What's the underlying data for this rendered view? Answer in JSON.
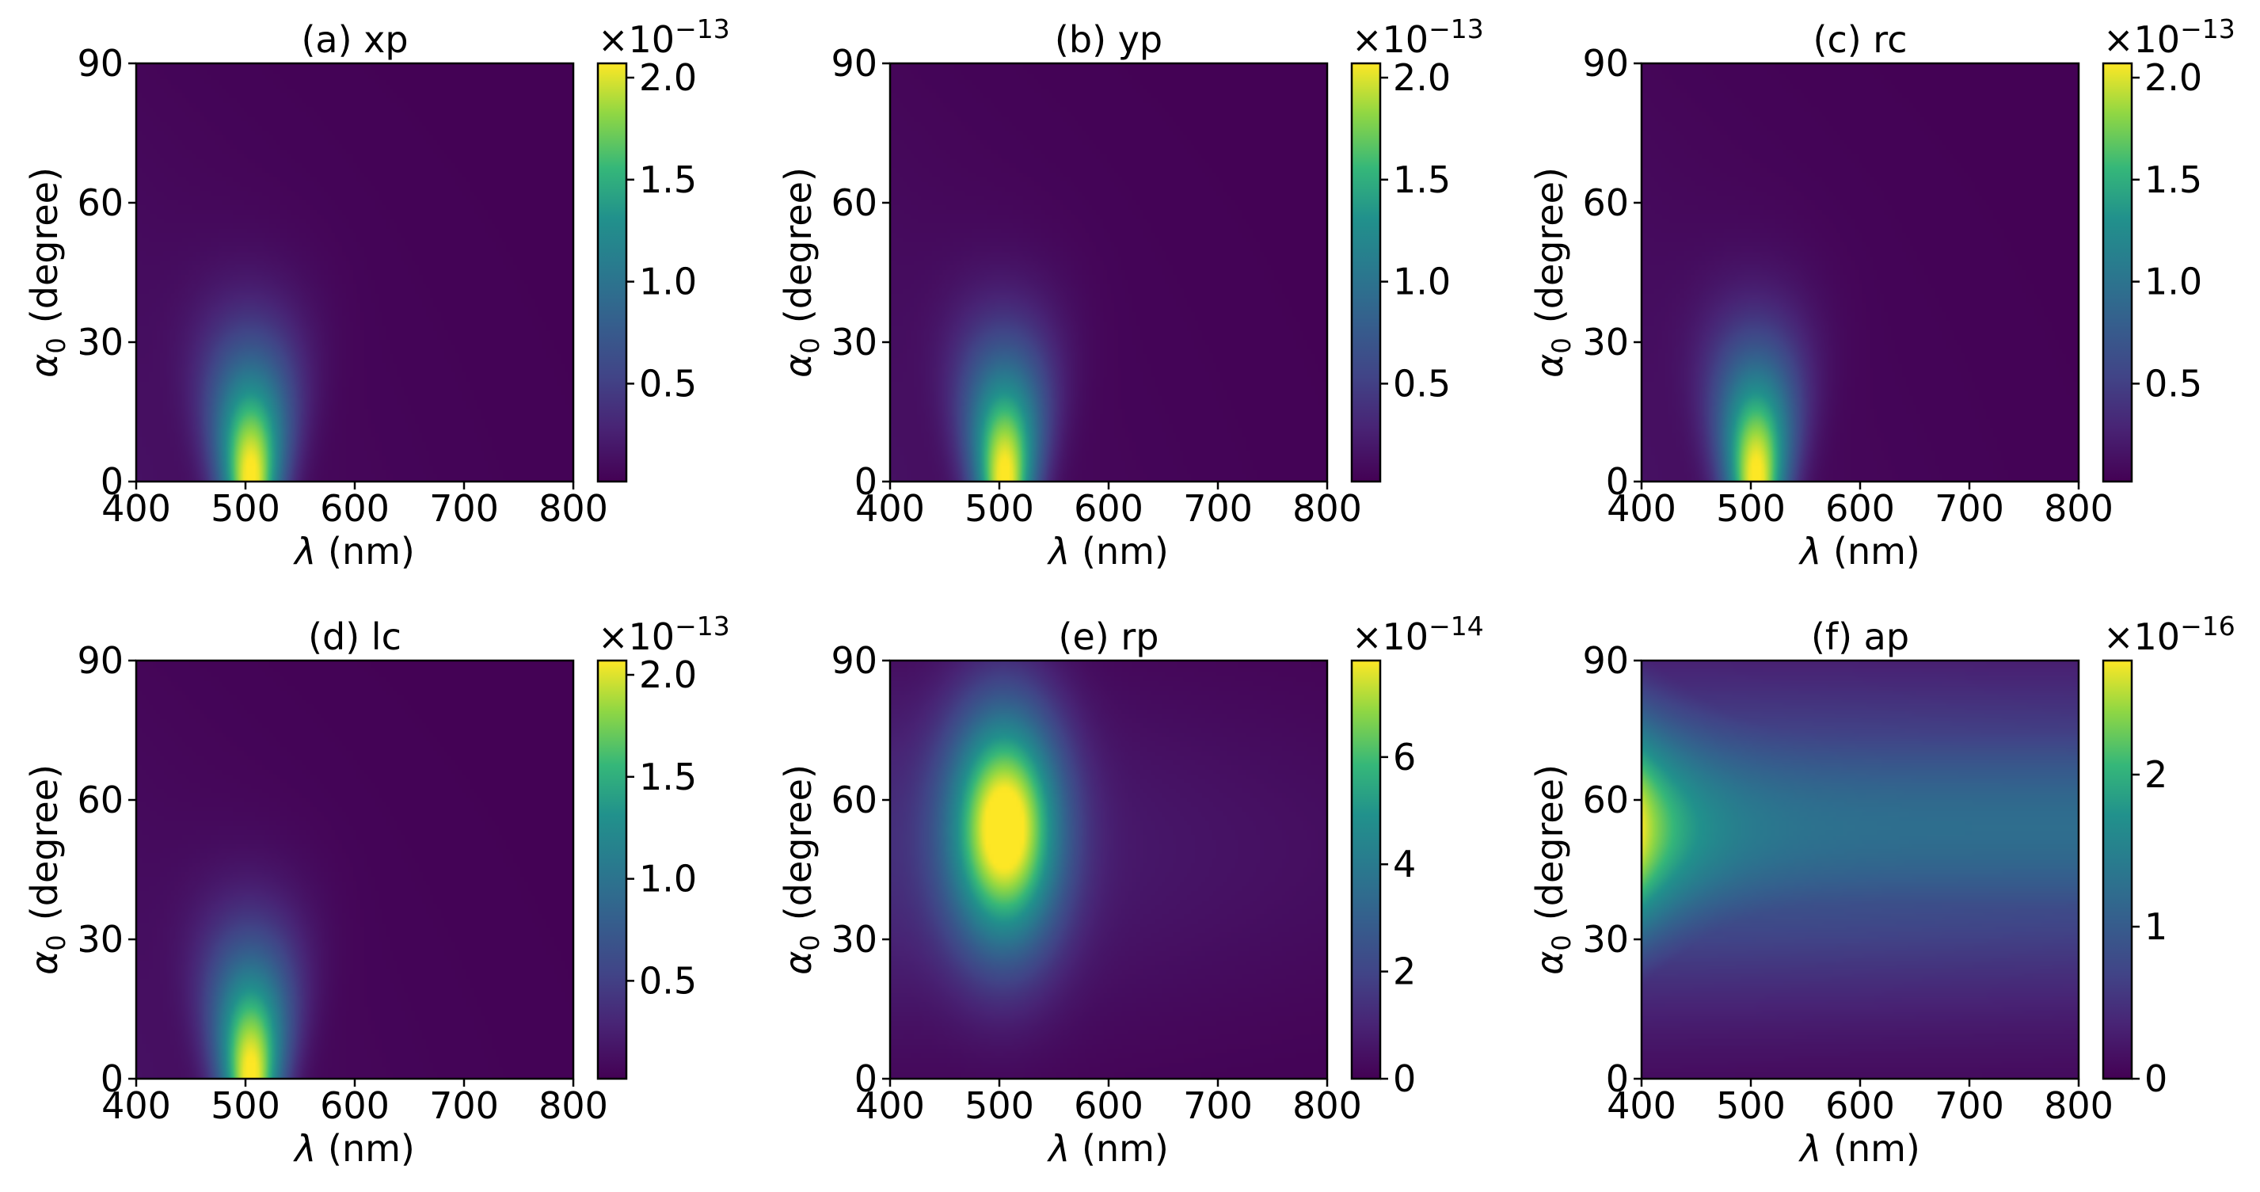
{
  "figure": {
    "description_free": true
  },
  "chart_data": [
    {
      "type": "heatmap",
      "title": "(a) xp",
      "xlabel": "λ (nm)",
      "ylabel_symbol": "α",
      "ylabel_sub": "0",
      "ylabel_rest": "(degree)",
      "xlim": [
        400,
        800
      ],
      "ylim": [
        0,
        90
      ],
      "xticks": [
        "400",
        "500",
        "600",
        "700",
        "800"
      ],
      "xtick_values": [
        400,
        500,
        600,
        700,
        800
      ],
      "yticks": [
        "0",
        "30",
        "60",
        "90"
      ],
      "ytick_values": [
        0,
        30,
        60,
        90
      ],
      "colorbar": {
        "range": [
          0.02,
          2.07
        ],
        "ticks": [
          "0.5",
          "1.0",
          "1.5",
          "2.0"
        ],
        "tick_values": [
          0.5,
          1.0,
          1.5,
          2.0
        ],
        "multiplier_base": "×10",
        "multiplier_exp": "−13"
      },
      "peak": {
        "wavelength_nm": 505,
        "angle_deg": 0,
        "value": 2.07
      },
      "colormap": "viridis"
    },
    {
      "type": "heatmap",
      "title": "(b) yp",
      "xlabel": "λ (nm)",
      "ylabel_symbol": "α",
      "ylabel_sub": "0",
      "ylabel_rest": "(degree)",
      "xlim": [
        400,
        800
      ],
      "ylim": [
        0,
        90
      ],
      "xticks": [
        "400",
        "500",
        "600",
        "700",
        "800"
      ],
      "xtick_values": [
        400,
        500,
        600,
        700,
        800
      ],
      "yticks": [
        "0",
        "30",
        "60",
        "90"
      ],
      "ytick_values": [
        0,
        30,
        60,
        90
      ],
      "colorbar": {
        "range": [
          0.02,
          2.07
        ],
        "ticks": [
          "0.5",
          "1.0",
          "1.5",
          "2.0"
        ],
        "tick_values": [
          0.5,
          1.0,
          1.5,
          2.0
        ],
        "multiplier_base": "×10",
        "multiplier_exp": "−13"
      },
      "peak": {
        "wavelength_nm": 505,
        "angle_deg": 0,
        "value": 2.07
      },
      "colormap": "viridis"
    },
    {
      "type": "heatmap",
      "title": "(c) rc",
      "xlabel": "λ (nm)",
      "ylabel_symbol": "α",
      "ylabel_sub": "0",
      "ylabel_rest": "(degree)",
      "xlim": [
        400,
        800
      ],
      "ylim": [
        0,
        90
      ],
      "xticks": [
        "400",
        "500",
        "600",
        "700",
        "800"
      ],
      "xtick_values": [
        400,
        500,
        600,
        700,
        800
      ],
      "yticks": [
        "0",
        "30",
        "60",
        "90"
      ],
      "ytick_values": [
        0,
        30,
        60,
        90
      ],
      "colorbar": {
        "range": [
          0.02,
          2.07
        ],
        "ticks": [
          "0.5",
          "1.0",
          "1.5",
          "2.0"
        ],
        "tick_values": [
          0.5,
          1.0,
          1.5,
          2.0
        ],
        "multiplier_base": "×10",
        "multiplier_exp": "−13"
      },
      "peak": {
        "wavelength_nm": 505,
        "angle_deg": 0,
        "value": 2.07
      },
      "colormap": "viridis"
    },
    {
      "type": "heatmap",
      "title": "(d) lc",
      "xlabel": "λ (nm)",
      "ylabel_symbol": "α",
      "ylabel_sub": "0",
      "ylabel_rest": "(degree)",
      "xlim": [
        400,
        800
      ],
      "ylim": [
        0,
        90
      ],
      "xticks": [
        "400",
        "500",
        "600",
        "700",
        "800"
      ],
      "xtick_values": [
        400,
        500,
        600,
        700,
        800
      ],
      "yticks": [
        "0",
        "30",
        "60",
        "90"
      ],
      "ytick_values": [
        0,
        30,
        60,
        90
      ],
      "colorbar": {
        "range": [
          0.02,
          2.07
        ],
        "ticks": [
          "0.5",
          "1.0",
          "1.5",
          "2.0"
        ],
        "tick_values": [
          0.5,
          1.0,
          1.5,
          2.0
        ],
        "multiplier_base": "×10",
        "multiplier_exp": "−13"
      },
      "peak": {
        "wavelength_nm": 505,
        "angle_deg": 0,
        "value": 2.07
      },
      "colormap": "viridis"
    },
    {
      "type": "heatmap",
      "title": "(e) rp",
      "xlabel": "λ (nm)",
      "ylabel_symbol": "α",
      "ylabel_sub": "0",
      "ylabel_rest": "(degree)",
      "xlim": [
        400,
        800
      ],
      "ylim": [
        0,
        90
      ],
      "xticks": [
        "400",
        "500",
        "600",
        "700",
        "800"
      ],
      "xtick_values": [
        400,
        500,
        600,
        700,
        800
      ],
      "yticks": [
        "0",
        "30",
        "60",
        "90"
      ],
      "ytick_values": [
        0,
        30,
        60,
        90
      ],
      "colorbar": {
        "range": [
          0,
          7.8
        ],
        "ticks": [
          "0",
          "2",
          "4",
          "6"
        ],
        "tick_values": [
          0,
          2,
          4,
          6
        ],
        "multiplier_base": "×10",
        "multiplier_exp": "−14"
      },
      "peak": {
        "wavelength_nm": 505,
        "angle_deg": 55,
        "value": 7.8
      },
      "colormap": "viridis"
    },
    {
      "type": "heatmap",
      "title": "(f) ap",
      "xlabel": "λ (nm)",
      "ylabel_symbol": "α",
      "ylabel_sub": "0",
      "ylabel_rest": "(degree)",
      "xlim": [
        400,
        800
      ],
      "ylim": [
        0,
        90
      ],
      "xticks": [
        "400",
        "500",
        "600",
        "700",
        "800"
      ],
      "xtick_values": [
        400,
        500,
        600,
        700,
        800
      ],
      "yticks": [
        "0",
        "30",
        "60",
        "90"
      ],
      "ytick_values": [
        0,
        30,
        60,
        90
      ],
      "colorbar": {
        "range": [
          0,
          2.75
        ],
        "ticks": [
          "0",
          "1",
          "2"
        ],
        "tick_values": [
          0,
          1,
          2
        ],
        "multiplier_base": "×10",
        "multiplier_exp": "−16"
      },
      "peak": {
        "wavelength_nm": 400,
        "angle_deg": 55,
        "value": 2.75
      },
      "colormap": "viridis"
    }
  ]
}
